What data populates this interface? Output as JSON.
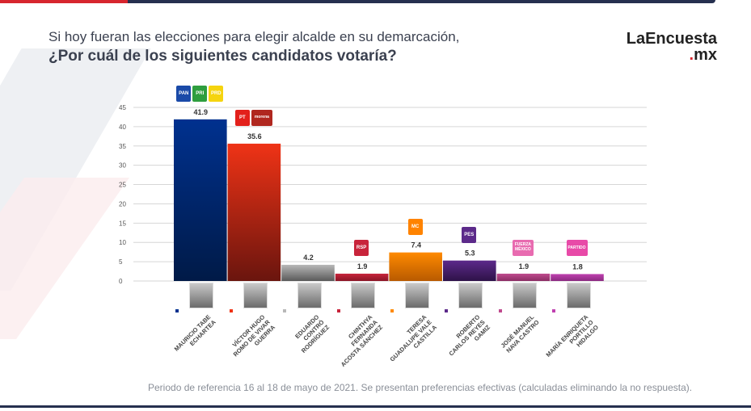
{
  "header": {
    "title_line1": "Si hoy fueran las elecciones para elegir alcalde en su demarcación,",
    "title_line2": "¿Por cuál de los siguientes candidatos votaría?"
  },
  "logo": {
    "name": "LaEncuesta",
    "suffix_dot": ".",
    "suffix": "mx"
  },
  "footnote": "Periodo de referencia 16 al 18 de mayo de 2021. Se presentan preferencias efectivas (calculadas eliminando la no respuesta).",
  "chart_data": {
    "type": "bar",
    "ylim": [
      0,
      45
    ],
    "yticks": [
      0,
      5,
      10,
      15,
      20,
      25,
      30,
      35,
      40,
      45
    ],
    "grid": true,
    "categories": [
      "Mauricio Tabe Echartea",
      "Víctor Hugo Romo de Vivar Guerra",
      "Eduardo Contró Rodríguez",
      "Chinthya Fernanda Acosta Sánchez",
      "Teresa Guadalupe Vale Castilla",
      "Roberto Carlos Reyes Gamiz",
      "José Manuel Nava Castro",
      "María Enriqueta Portillo Hidalgo"
    ],
    "values": [
      41.9,
      35.6,
      4.2,
      1.9,
      7.4,
      5.3,
      1.9,
      1.8
    ],
    "value_labels": [
      "41.9",
      "35.6",
      "4.2",
      "1.9",
      "7.4",
      "5.3",
      "1.9",
      "1.8"
    ],
    "colors": [
      [
        "#00318f",
        "#001a47"
      ],
      [
        "#ef3316",
        "#6a150e"
      ],
      [
        "#b8b8b8",
        "#5a5a5a"
      ],
      [
        "#c8243b",
        "#8a1526"
      ],
      [
        "#ff8a00",
        "#b85a00"
      ],
      [
        "#5c2a8a",
        "#2e1248"
      ],
      [
        "#c04a8e",
        "#8a2d64"
      ],
      [
        "#c040b0",
        "#8a2a80"
      ]
    ],
    "parties": [
      [
        {
          "label": "PAN",
          "color": "#1a4aa8"
        },
        {
          "label": "PRI",
          "color": "#2e9e3e"
        },
        {
          "label": "PRD",
          "color": "#f5d40f"
        }
      ],
      [
        {
          "label": "PT",
          "color": "#e3201b"
        },
        {
          "label": "morena",
          "color": "#b0271f"
        }
      ],
      [],
      [
        {
          "label": "RSP",
          "color": "#c8243b"
        }
      ],
      [
        {
          "label": "MC",
          "color": "#ff8300"
        }
      ],
      [
        {
          "label": "PES",
          "color": "#5c2a8a"
        }
      ],
      [
        {
          "label": "FUERZA MÉXICO",
          "color": "#e86bb0"
        }
      ],
      [
        {
          "label": "PARTIDO",
          "color": "#e84aa8"
        }
      ]
    ]
  }
}
